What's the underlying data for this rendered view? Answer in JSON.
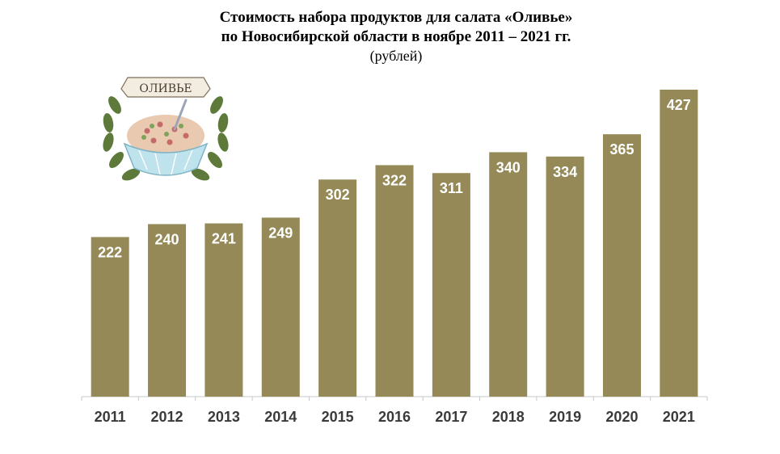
{
  "title_lines": [
    "Стоимость набора продуктов для салата «Оливье»",
    "по Новосибирской области в ноябре 2011 – 2021 гг."
  ],
  "subtitle": "(рублей)",
  "logo": {
    "text": "ОЛИВЬЕ",
    "icon": "olivier-salad-bowl-wreath"
  },
  "colors": {
    "bar": "#958A57",
    "bar_label": "#ffffff",
    "axis_text": "#3a3a3a",
    "axis_line": "#c8c8c8"
  },
  "chart_data": {
    "type": "bar",
    "title": "Стоимость набора продуктов для салата «Оливье» по Новосибирской области в ноябре 2011 – 2021 гг.",
    "ylabel": "(рублей)",
    "categories": [
      "2011",
      "2012",
      "2013",
      "2014",
      "2015",
      "2016",
      "2017",
      "2018",
      "2019",
      "2020",
      "2021"
    ],
    "values": [
      222,
      240,
      241,
      249,
      302,
      322,
      311,
      340,
      334,
      365,
      427
    ],
    "grid": false,
    "legend": "none"
  }
}
